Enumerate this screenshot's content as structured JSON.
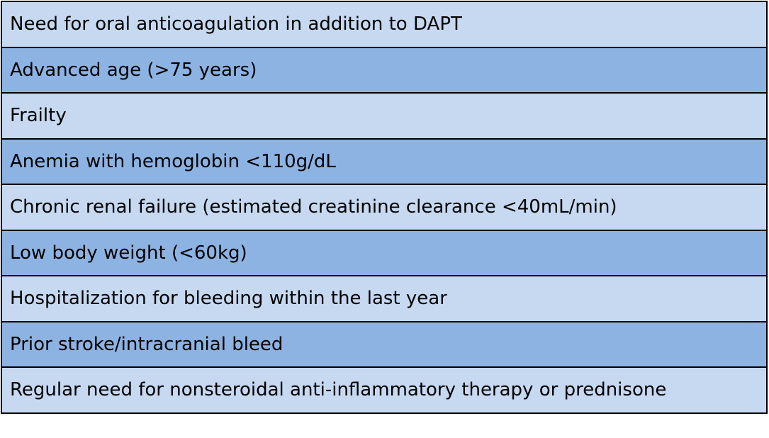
{
  "table": {
    "rows": [
      [
        "Need for oral anticoagulation in addition to DAPT"
      ],
      [
        "Advanced age (>75 years)"
      ],
      [
        "Frailty"
      ],
      [
        "Anemia with hemoglobin <110g/dL"
      ],
      [
        "Chronic renal failure (estimated creatinine clearance <40mL/min)"
      ],
      [
        "Low body weight (<60kg)"
      ],
      [
        "Hospitalization for bleeding within the last year"
      ],
      [
        "Prior stroke/intracranial bleed"
      ],
      [
        "Regular need for nonsteroidal anti-inflammatory therapy or prednisone"
      ]
    ]
  }
}
